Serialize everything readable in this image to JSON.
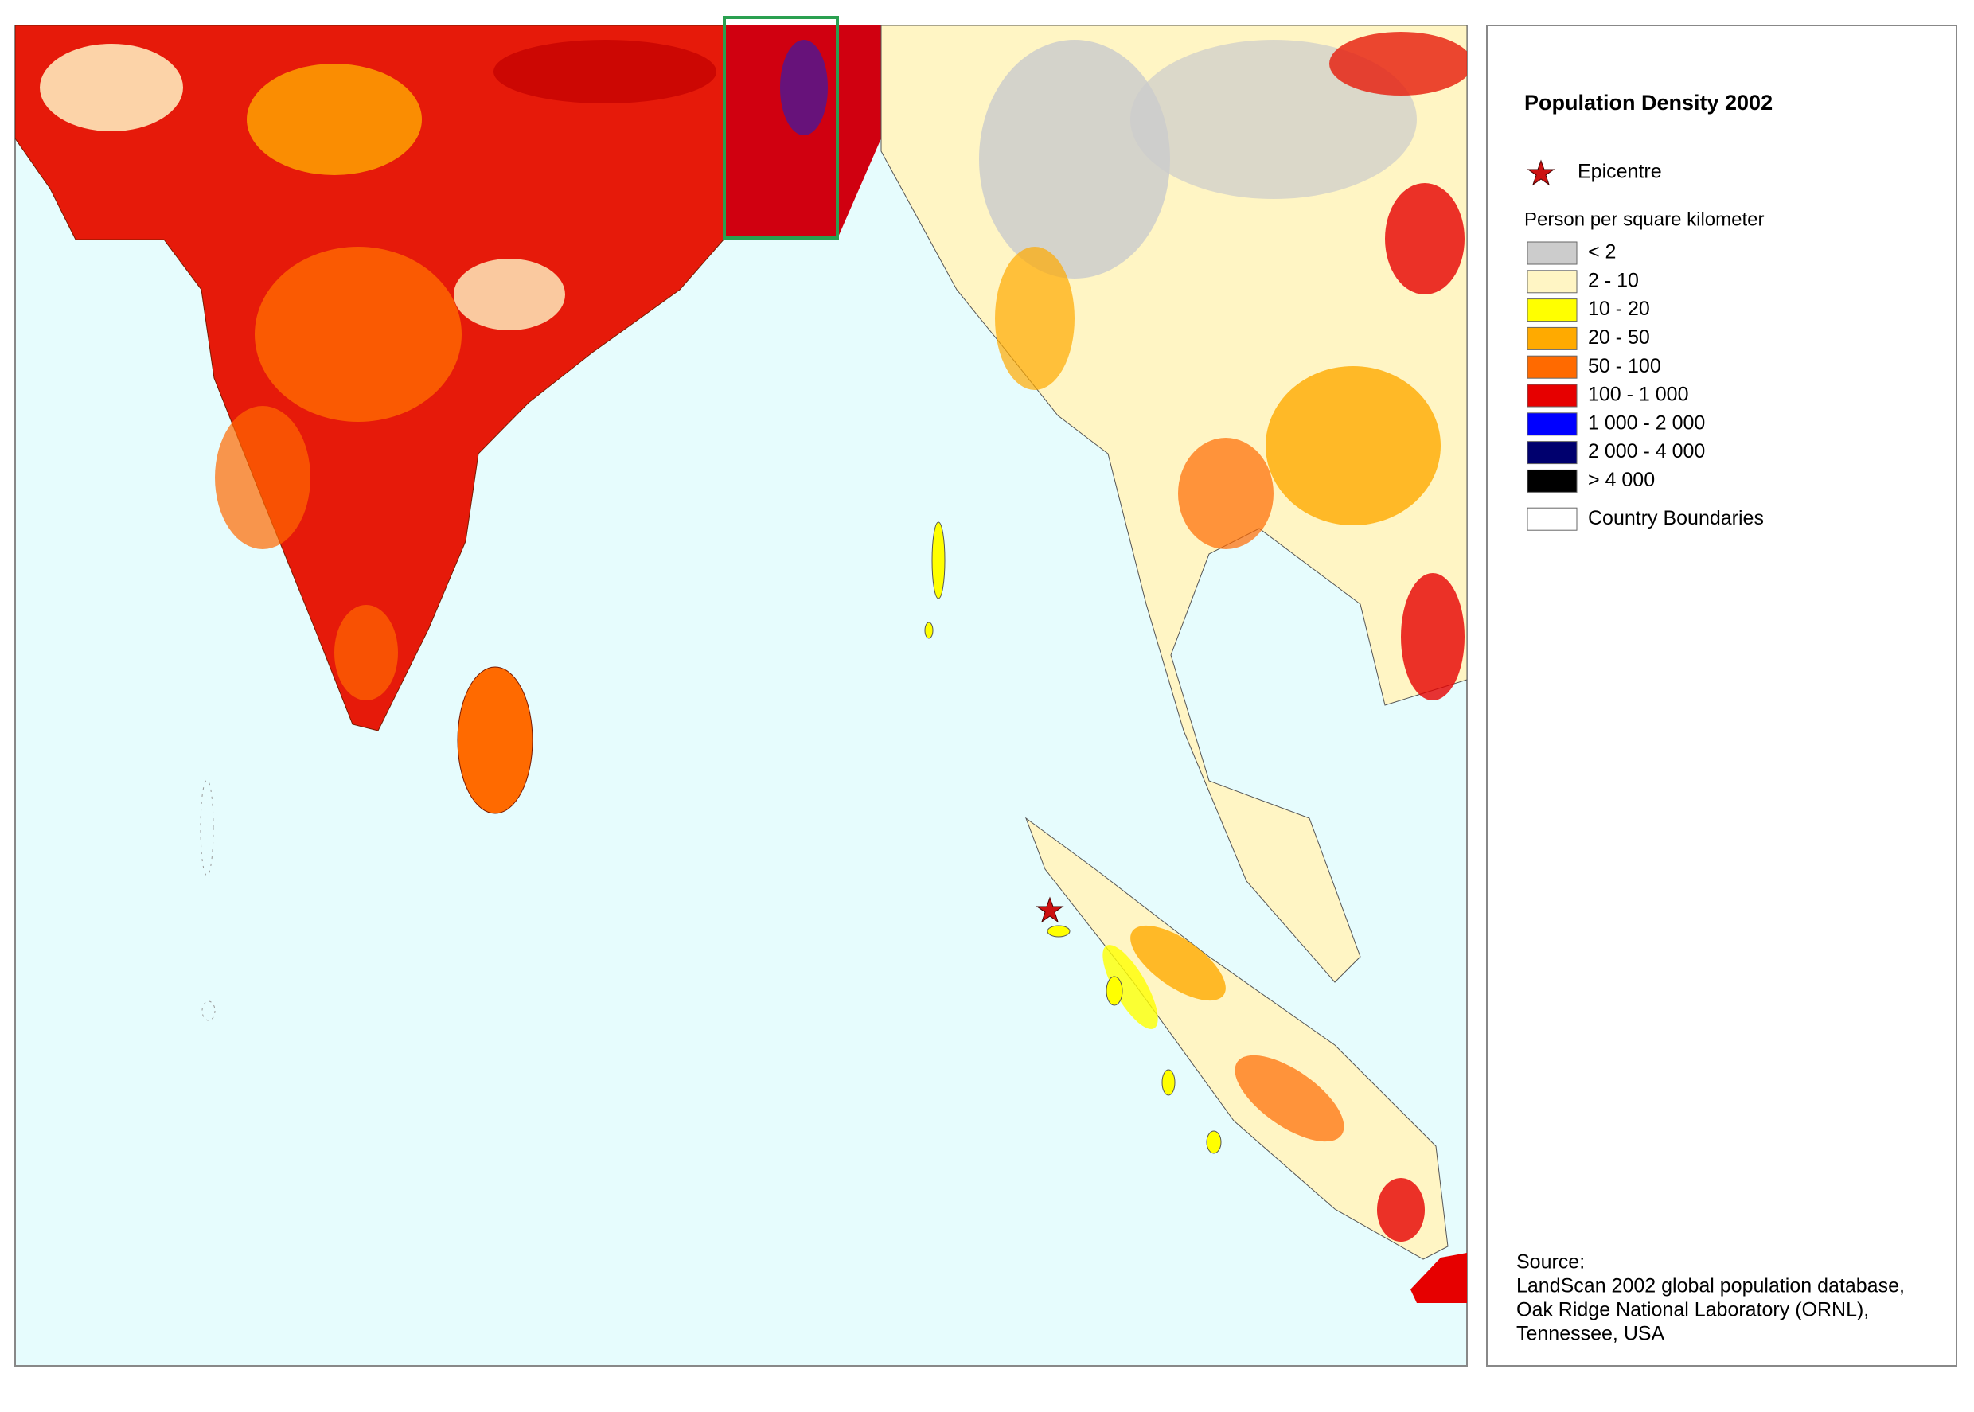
{
  "legend": {
    "title": "Population Density 2002",
    "epicentre": "Epicentre",
    "unit_label": "Person per square kilometer",
    "classes": [
      {
        "label": "< 2",
        "color": "#cccccc"
      },
      {
        "label": "2 - 10",
        "color": "#fff5c4"
      },
      {
        "label": "10 - 20",
        "color": "#ffff00"
      },
      {
        "label": "20 - 50",
        "color": "#ffaa00"
      },
      {
        "label": "50 - 100",
        "color": "#ff6a00"
      },
      {
        "label": "100 - 1 000",
        "color": "#e60000"
      },
      {
        "label": "1 000 - 2 000",
        "color": "#0000ff"
      },
      {
        "label": "2 000 - 4 000",
        "color": "#00006e"
      },
      {
        "label": "> 4 000",
        "color": "#000000"
      }
    ],
    "boundaries_label": "Country Boundaries"
  },
  "source": {
    "heading": "Source:",
    "lines": [
      "LandScan 2002 global population database,",
      "Oak Ridge National Laboratory (ORNL),",
      "Tennessee, USA"
    ]
  }
}
